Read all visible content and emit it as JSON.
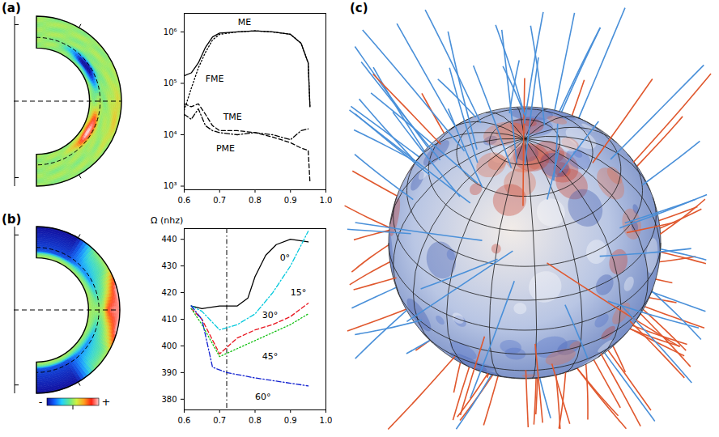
{
  "figure": {
    "panel_labels": [
      "(a)",
      "(b)",
      "(c)"
    ]
  },
  "chart_data": [
    {
      "type": "line",
      "log": "y",
      "xlim": [
        0.6,
        1.0
      ],
      "xticks": [
        0.6,
        0.7,
        0.8,
        0.9,
        {
          "value": 1,
          "label": "1.0"
        }
      ],
      "ylim": [
        850,
        2300000
      ],
      "yticks": [
        {
          "value": 1000,
          "label": "10³"
        },
        {
          "value": 10000,
          "label": "10⁴"
        },
        {
          "value": 100000,
          "label": "10⁵"
        },
        {
          "value": 1000000,
          "label": "10⁶"
        }
      ],
      "series": [
        {
          "name": "ME",
          "color": "#000000",
          "line_style": "solid",
          "x": [
            0.6,
            0.62,
            0.64,
            0.66,
            0.68,
            0.7,
            0.75,
            0.8,
            0.85,
            0.9,
            0.93,
            0.95,
            0.955
          ],
          "values": [
            140000,
            160000,
            250000,
            500000,
            800000,
            950000,
            1000000,
            1050000,
            1000000,
            900000,
            600000,
            250000,
            35000
          ]
        },
        {
          "name": "FME",
          "color": "#000000",
          "line_style": "dotted",
          "x": [
            0.6,
            0.62,
            0.64,
            0.66,
            0.68,
            0.7,
            0.75,
            0.8,
            0.85,
            0.9,
            0.93,
            0.95,
            0.955
          ],
          "values": [
            30000,
            80000,
            200000,
            400000,
            700000,
            900000,
            1000000,
            1050000,
            1000000,
            900000,
            600000,
            250000,
            35000
          ]
        },
        {
          "name": "TME",
          "color": "#000000",
          "line_style": "dashed",
          "x": [
            0.6,
            0.62,
            0.64,
            0.66,
            0.68,
            0.7,
            0.75,
            0.8,
            0.85,
            0.9,
            0.93,
            0.95,
            0.955
          ],
          "values": [
            40000,
            35000,
            40000,
            25000,
            15000,
            12000,
            12000,
            11000,
            9000,
            7000,
            5500,
            5000,
            1200
          ]
        },
        {
          "name": "PME",
          "color": "#000000",
          "line_style": "dashdot",
          "x": [
            0.6,
            0.62,
            0.64,
            0.66,
            0.68,
            0.7,
            0.75,
            0.8,
            0.85,
            0.9,
            0.93,
            0.95
          ],
          "values": [
            25000,
            20000,
            32000,
            15000,
            12000,
            11000,
            10000,
            11000,
            10000,
            8000,
            12000,
            13000
          ]
        }
      ]
    },
    {
      "type": "line",
      "ylabel": "Ω (nhz)",
      "xlim": [
        0.6,
        1.0
      ],
      "xticks": [
        0.6,
        0.7,
        0.8,
        0.9,
        {
          "value": 1,
          "label": "1.0"
        }
      ],
      "ylim": [
        376,
        444
      ],
      "yticks": [
        380,
        390,
        400,
        410,
        420,
        430,
        440
      ],
      "reference_x": 0.72,
      "series": [
        {
          "name": "0°",
          "color": "#000000",
          "line_style": "solid",
          "x": [
            0.62,
            0.65,
            0.7,
            0.75,
            0.78,
            0.8,
            0.83,
            0.86,
            0.9,
            0.95
          ],
          "values": [
            415,
            414,
            415,
            415,
            418,
            426,
            434,
            438,
            440,
            439
          ]
        },
        {
          "name": "15°",
          "color": "#00c8dc",
          "line_style": "dashdot",
          "x": [
            0.62,
            0.65,
            0.7,
            0.75,
            0.8,
            0.85,
            0.9,
            0.95
          ],
          "values": [
            415,
            413,
            406,
            408,
            412,
            420,
            430,
            443
          ]
        },
        {
          "name": "30°",
          "color": "#e8141e",
          "line_style": "dashed",
          "x": [
            0.62,
            0.65,
            0.7,
            0.75,
            0.8,
            0.85,
            0.9,
            0.95
          ],
          "values": [
            414,
            410,
            397,
            403,
            406,
            408,
            411,
            416
          ]
        },
        {
          "name": "45°",
          "color": "#10c010",
          "line_style": "dotted",
          "x": [
            0.62,
            0.65,
            0.7,
            0.75,
            0.8,
            0.85,
            0.9,
            0.95
          ],
          "values": [
            414,
            408,
            396,
            399,
            402,
            405,
            408,
            412
          ]
        },
        {
          "name": "60°",
          "color": "#1020d0",
          "line_style": "dashdot",
          "x": [
            0.62,
            0.65,
            0.68,
            0.72,
            0.8,
            0.85,
            0.9,
            0.95
          ],
          "values": [
            415,
            410,
            392,
            390,
            388,
            387,
            386,
            385
          ]
        }
      ]
    }
  ],
  "maps": {
    "colorbar_labels": [
      "-",
      "+"
    ]
  }
}
